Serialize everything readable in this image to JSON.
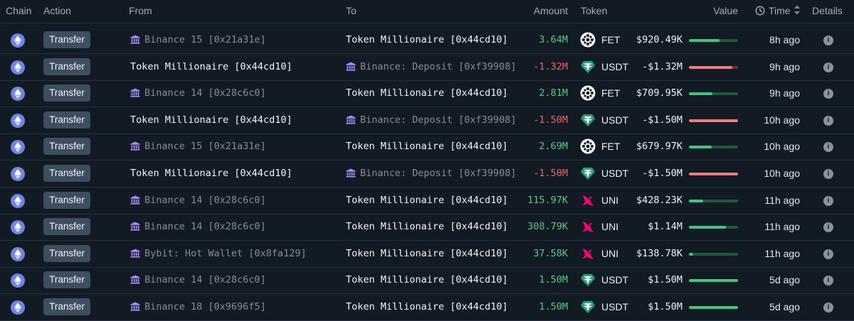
{
  "headers": {
    "chain": "Chain",
    "action": "Action",
    "from": "From",
    "to": "To",
    "amount": "Amount",
    "token": "Token",
    "value": "Value",
    "time": "Time",
    "details": "Details"
  },
  "colors": {
    "positive": "#4fcf86",
    "negative": "#ef6262",
    "bar_green": "#40c77f",
    "bar_red": "#ef7c7c",
    "eth": "#6f86e0"
  },
  "rows": [
    {
      "chain": "ethereum-icon",
      "action": "Transfer",
      "from": "Binance 15 [0x21a31e]",
      "from_exchange": true,
      "to": "Token Millionaire [0x44cd10]",
      "to_exchange": false,
      "amount": "3.64M",
      "sign": "pos",
      "token": "FET",
      "value": "$920.49K",
      "bar": 0.62,
      "bar_color": "green",
      "time": "8h ago"
    },
    {
      "chain": "ethereum-icon",
      "action": "Transfer",
      "from": "Token Millionaire [0x44cd10]",
      "from_exchange": false,
      "to": "Binance: Deposit [0xf39908]",
      "to_exchange": true,
      "amount": "-1.32M",
      "sign": "neg",
      "token": "USDT",
      "value": "-$1.32M",
      "bar": 0.88,
      "bar_color": "red",
      "time": "9h ago"
    },
    {
      "chain": "ethereum-icon",
      "action": "Transfer",
      "from": "Binance 14 [0x28c6c0]",
      "from_exchange": true,
      "to": "Token Millionaire [0x44cd10]",
      "to_exchange": false,
      "amount": "2.81M",
      "sign": "pos",
      "token": "FET",
      "value": "$709.95K",
      "bar": 0.48,
      "bar_color": "green",
      "time": "9h ago"
    },
    {
      "chain": "ethereum-icon",
      "action": "Transfer",
      "from": "Token Millionaire [0x44cd10]",
      "from_exchange": false,
      "to": "Binance: Deposit [0xf39908]",
      "to_exchange": true,
      "amount": "-1.50M",
      "sign": "neg",
      "token": "USDT",
      "value": "-$1.50M",
      "bar": 1.0,
      "bar_color": "red",
      "time": "10h ago"
    },
    {
      "chain": "ethereum-icon",
      "action": "Transfer",
      "from": "Binance 15 [0x21a31e]",
      "from_exchange": true,
      "to": "Token Millionaire [0x44cd10]",
      "to_exchange": false,
      "amount": "2.69M",
      "sign": "pos",
      "token": "FET",
      "value": "$679.97K",
      "bar": 0.46,
      "bar_color": "green",
      "time": "10h ago"
    },
    {
      "chain": "ethereum-icon",
      "action": "Transfer",
      "from": "Token Millionaire [0x44cd10]",
      "from_exchange": false,
      "to": "Binance: Deposit [0xf39908]",
      "to_exchange": true,
      "amount": "-1.50M",
      "sign": "neg",
      "token": "USDT",
      "value": "-$1.50M",
      "bar": 1.0,
      "bar_color": "red",
      "time": "10h ago"
    },
    {
      "chain": "ethereum-icon",
      "action": "Transfer",
      "from": "Binance 14 [0x28c6c0]",
      "from_exchange": true,
      "to": "Token Millionaire [0x44cd10]",
      "to_exchange": false,
      "amount": "115.97K",
      "sign": "pos",
      "token": "UNI",
      "value": "$428.23K",
      "bar": 0.29,
      "bar_color": "green",
      "time": "11h ago"
    },
    {
      "chain": "ethereum-icon",
      "action": "Transfer",
      "from": "Binance 14 [0x28c6c0]",
      "from_exchange": true,
      "to": "Token Millionaire [0x44cd10]",
      "to_exchange": false,
      "amount": "308.79K",
      "sign": "pos",
      "token": "UNI",
      "value": "$1.14M",
      "bar": 0.76,
      "bar_color": "green",
      "time": "11h ago"
    },
    {
      "chain": "ethereum-icon",
      "action": "Transfer",
      "from": "Bybit: Hot Wallet [0x8fa129]",
      "from_exchange": true,
      "to": "Token Millionaire [0x44cd10]",
      "to_exchange": false,
      "amount": "37.58K",
      "sign": "pos",
      "token": "UNI",
      "value": "$138.78K",
      "bar": 0.09,
      "bar_color": "green",
      "time": "11h ago"
    },
    {
      "chain": "ethereum-icon",
      "action": "Transfer",
      "from": "Binance 14 [0x28c6c0]",
      "from_exchange": true,
      "to": "Token Millionaire [0x44cd10]",
      "to_exchange": false,
      "amount": "1.50M",
      "sign": "pos",
      "token": "USDT",
      "value": "$1.50M",
      "bar": 1.0,
      "bar_color": "green",
      "time": "5d ago"
    },
    {
      "chain": "ethereum-icon",
      "action": "Transfer",
      "from": "Binance 18 [0x9696f5]",
      "from_exchange": true,
      "to": "Token Millionaire [0x44cd10]",
      "to_exchange": false,
      "amount": "1.50M",
      "sign": "pos",
      "token": "USDT",
      "value": "$1.50M",
      "bar": 1.0,
      "bar_color": "green",
      "time": "5d ago"
    }
  ]
}
